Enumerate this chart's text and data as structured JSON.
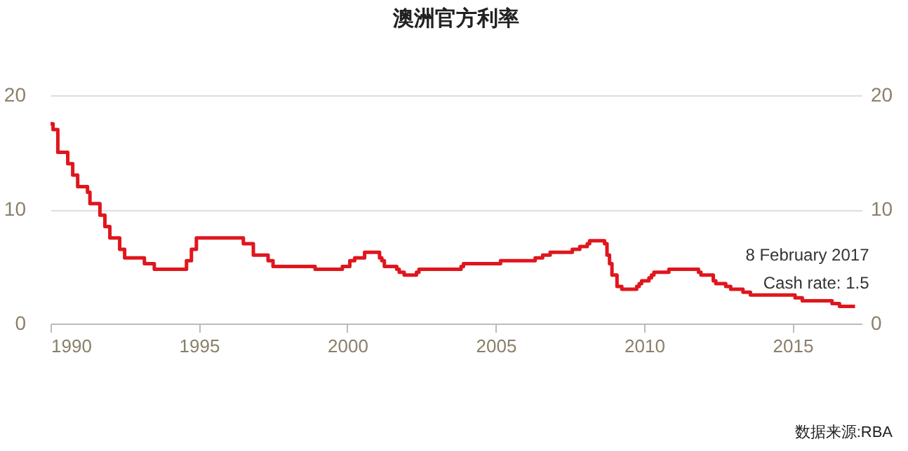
{
  "chart_data": {
    "type": "step",
    "title": "澳洲官方利率",
    "x": [
      "1990-01",
      "1990-02",
      "1990-04",
      "1990-08",
      "1990-10",
      "1990-12",
      "1991-04",
      "1991-05",
      "1991-09",
      "1991-11",
      "1992-01",
      "1992-05",
      "1992-07",
      "1993-03",
      "1993-07",
      "1994-08",
      "1994-10",
      "1994-12",
      "1996-07",
      "1996-11",
      "1997-05",
      "1997-07",
      "1998-12",
      "1999-11",
      "2000-02",
      "2000-04",
      "2000-08",
      "2001-02",
      "2001-03",
      "2001-04",
      "2001-09",
      "2001-10",
      "2001-12",
      "2002-05",
      "2002-06",
      "2003-11",
      "2003-12",
      "2005-03",
      "2006-05",
      "2006-08",
      "2006-11",
      "2007-08",
      "2007-11",
      "2008-02",
      "2008-03",
      "2008-09",
      "2008-10",
      "2008-11",
      "2008-12",
      "2009-02",
      "2009-04",
      "2009-10",
      "2009-11",
      "2009-12",
      "2010-03",
      "2010-04",
      "2010-05",
      "2010-11",
      "2011-11",
      "2011-12",
      "2012-05",
      "2012-06",
      "2012-10",
      "2012-12",
      "2013-05",
      "2013-08",
      "2015-02",
      "2015-05",
      "2016-05",
      "2016-08",
      "2017-02-08"
    ],
    "series": [
      {
        "color": "#e0161d",
        "values": [
          17.5,
          17,
          15,
          14,
          13,
          12,
          11.5,
          10.5,
          9.5,
          8.5,
          7.5,
          6.5,
          5.75,
          5.25,
          4.75,
          5.5,
          6.5,
          7.5,
          7,
          6,
          5.5,
          5,
          4.75,
          5,
          5.5,
          5.75,
          6.25,
          5.75,
          5.5,
          5,
          4.75,
          4.5,
          4.25,
          4.5,
          4.75,
          5,
          5.25,
          5.5,
          5.75,
          6,
          6.25,
          6.5,
          6.75,
          7,
          7.25,
          7,
          6,
          5.25,
          4.25,
          3.25,
          3,
          3.25,
          3.5,
          3.75,
          4,
          4.25,
          4.5,
          4.75,
          4.5,
          4.25,
          3.75,
          3.5,
          3.25,
          3,
          2.75,
          2.5,
          2.25,
          2,
          1.75,
          1.5,
          1.5
        ]
      }
    ],
    "xlim": [
      "1990-01-01",
      "2017-05-01"
    ],
    "xticks": [
      "1990",
      "1995",
      "2000",
      "2005",
      "2010",
      "2015"
    ],
    "ylim": [
      0,
      20
    ],
    "yticks": [
      0,
      10,
      20
    ],
    "y2lim": [
      0,
      20
    ],
    "y2ticks": [
      0,
      10,
      20
    ],
    "grid": "y",
    "annotations": [
      {
        "text": "8 February 2017\nCash rate: 1.5",
        "x": "2017-02-08",
        "y": 1.5
      },
      "数据来源:RBA"
    ]
  }
}
